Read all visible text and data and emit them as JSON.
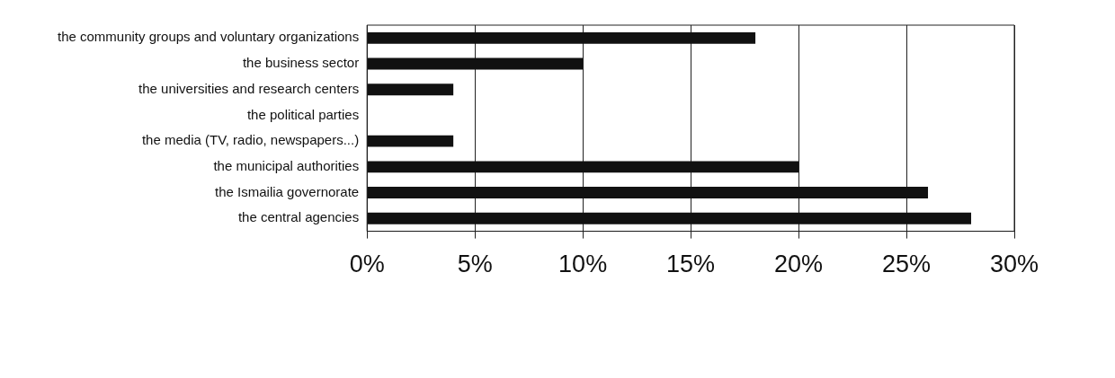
{
  "chart_data": {
    "type": "bar",
    "orientation": "horizontal",
    "categories": [
      "the community groups and voluntary organizations",
      "the business sector",
      "the universities and research centers",
      "the political parties",
      "the media (TV, radio, newspapers...)",
      "the municipal authorities",
      "the Ismailia governorate",
      "the central agencies"
    ],
    "values": [
      18,
      10,
      4,
      0,
      4,
      20,
      26,
      28
    ],
    "color": "#111111",
    "xlim": [
      0,
      30
    ],
    "xticks": [
      {
        "value": 0,
        "label": "0%"
      },
      {
        "value": 5,
        "label": "5%"
      },
      {
        "value": 10,
        "label": "10%"
      },
      {
        "value": 15,
        "label": "15%"
      },
      {
        "value": 20,
        "label": "20%"
      },
      {
        "value": 25,
        "label": "25%"
      },
      {
        "value": 30,
        "label": "30%"
      }
    ],
    "grid": "x",
    "legend": false
  }
}
